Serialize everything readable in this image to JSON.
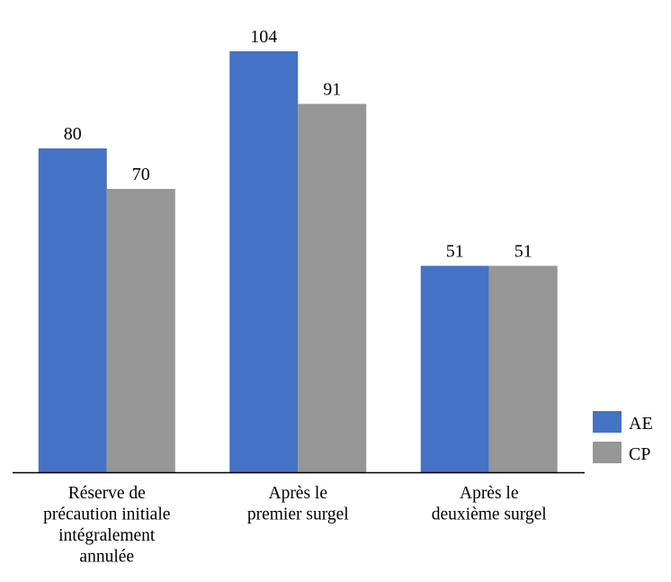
{
  "chart_data": {
    "type": "bar",
    "categories": [
      [
        "Réserve de",
        "précaution initiale",
        "intégralement",
        "annulée"
      ],
      [
        "Après le",
        "premier surgel"
      ],
      [
        "Après le",
        "deuxième surgel"
      ]
    ],
    "series": [
      {
        "name": "AE",
        "values": [
          80,
          104,
          51
        ],
        "color": "#4472C4"
      },
      {
        "name": "CP",
        "values": [
          70,
          91,
          51
        ],
        "color": "#969696"
      }
    ],
    "data_labels": true,
    "ylim": [
      0,
      104
    ],
    "grid": false,
    "legend_position": "right-bottom",
    "title": "",
    "xlabel": "",
    "ylabel": ""
  }
}
